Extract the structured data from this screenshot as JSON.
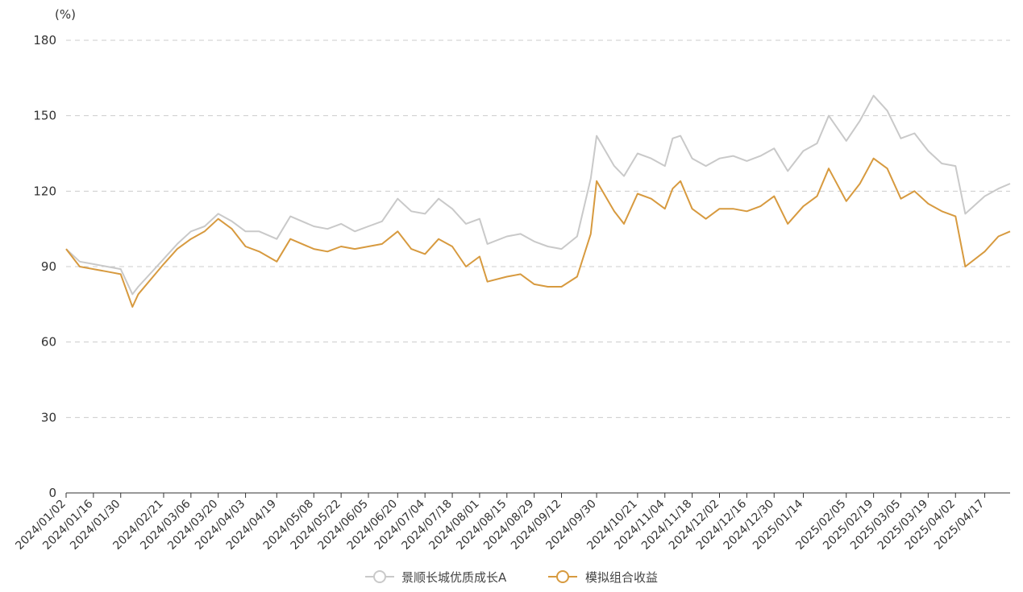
{
  "chart_data": {
    "type": "line",
    "y_unit": "(%)",
    "ylim": [
      0,
      180
    ],
    "y_ticks": [
      "0",
      "30",
      "60",
      "90",
      "120",
      "150",
      "180"
    ],
    "grid": true,
    "legend_position": "bottom-center",
    "x_ticks": [
      "2024/01/02",
      "2024/01/16",
      "2024/01/30",
      "2024/02/21",
      "2024/03/06",
      "2024/03/20",
      "2024/04/03",
      "2024/04/19",
      "2024/05/08",
      "2024/05/22",
      "2024/06/05",
      "2024/06/20",
      "2024/07/04",
      "2024/07/18",
      "2024/08/01",
      "2024/08/15",
      "2024/08/29",
      "2024/09/12",
      "2024/09/30",
      "2024/10/21",
      "2024/11/04",
      "2024/11/18",
      "2024/12/02",
      "2024/12/16",
      "2024/12/30",
      "2025/01/14",
      "2025/02/05",
      "2025/02/19",
      "2025/03/05",
      "2025/03/19",
      "2025/04/02",
      "2025/04/17"
    ],
    "x_end": "2025/04/30",
    "series": [
      {
        "name": "景顺长城优质成长A",
        "color": "#c9c9c9",
        "points": [
          [
            "2024/01/02",
            97
          ],
          [
            "2024/01/09",
            92
          ],
          [
            "2024/01/16",
            91
          ],
          [
            "2024/01/23",
            90
          ],
          [
            "2024/01/30",
            89
          ],
          [
            "2024/02/05",
            79
          ],
          [
            "2024/02/08",
            82
          ],
          [
            "2024/02/21",
            93
          ],
          [
            "2024/02/28",
            99
          ],
          [
            "2024/03/06",
            104
          ],
          [
            "2024/03/13",
            106
          ],
          [
            "2024/03/20",
            111
          ],
          [
            "2024/03/27",
            108
          ],
          [
            "2024/04/03",
            104
          ],
          [
            "2024/04/10",
            104
          ],
          [
            "2024/04/19",
            101
          ],
          [
            "2024/04/26",
            110
          ],
          [
            "2024/05/08",
            106
          ],
          [
            "2024/05/15",
            105
          ],
          [
            "2024/05/22",
            107
          ],
          [
            "2024/05/29",
            104
          ],
          [
            "2024/06/05",
            106
          ],
          [
            "2024/06/12",
            108
          ],
          [
            "2024/06/20",
            117
          ],
          [
            "2024/06/27",
            112
          ],
          [
            "2024/07/04",
            111
          ],
          [
            "2024/07/11",
            117
          ],
          [
            "2024/07/18",
            113
          ],
          [
            "2024/07/25",
            107
          ],
          [
            "2024/08/01",
            109
          ],
          [
            "2024/08/05",
            99
          ],
          [
            "2024/08/15",
            102
          ],
          [
            "2024/08/22",
            103
          ],
          [
            "2024/08/29",
            100
          ],
          [
            "2024/09/05",
            98
          ],
          [
            "2024/09/12",
            97
          ],
          [
            "2024/09/20",
            102
          ],
          [
            "2024/09/27",
            125
          ],
          [
            "2024/09/30",
            142
          ],
          [
            "2024/10/09",
            130
          ],
          [
            "2024/10/14",
            126
          ],
          [
            "2024/10/21",
            135
          ],
          [
            "2024/10/28",
            133
          ],
          [
            "2024/11/04",
            130
          ],
          [
            "2024/11/08",
            141
          ],
          [
            "2024/11/12",
            142
          ],
          [
            "2024/11/18",
            133
          ],
          [
            "2024/11/25",
            130
          ],
          [
            "2024/12/02",
            133
          ],
          [
            "2024/12/09",
            134
          ],
          [
            "2024/12/16",
            132
          ],
          [
            "2024/12/23",
            134
          ],
          [
            "2024/12/30",
            137
          ],
          [
            "2025/01/06",
            128
          ],
          [
            "2025/01/14",
            136
          ],
          [
            "2025/01/21",
            139
          ],
          [
            "2025/01/27",
            150
          ],
          [
            "2025/02/05",
            140
          ],
          [
            "2025/02/12",
            148
          ],
          [
            "2025/02/19",
            158
          ],
          [
            "2025/02/26",
            152
          ],
          [
            "2025/03/05",
            141
          ],
          [
            "2025/03/12",
            143
          ],
          [
            "2025/03/19",
            136
          ],
          [
            "2025/03/26",
            131
          ],
          [
            "2025/04/02",
            130
          ],
          [
            "2025/04/07",
            111
          ],
          [
            "2025/04/17",
            118
          ],
          [
            "2025/04/24",
            121
          ],
          [
            "2025/04/30",
            123
          ]
        ]
      },
      {
        "name": "模拟组合收益",
        "color": "#d79a3f",
        "points": [
          [
            "2024/01/02",
            97
          ],
          [
            "2024/01/09",
            90
          ],
          [
            "2024/01/16",
            89
          ],
          [
            "2024/01/23",
            88
          ],
          [
            "2024/01/30",
            87
          ],
          [
            "2024/02/05",
            74
          ],
          [
            "2024/02/08",
            79
          ],
          [
            "2024/02/21",
            91
          ],
          [
            "2024/02/28",
            97
          ],
          [
            "2024/03/06",
            101
          ],
          [
            "2024/03/13",
            104
          ],
          [
            "2024/03/20",
            109
          ],
          [
            "2024/03/27",
            105
          ],
          [
            "2024/04/03",
            98
          ],
          [
            "2024/04/10",
            96
          ],
          [
            "2024/04/19",
            92
          ],
          [
            "2024/04/26",
            101
          ],
          [
            "2024/05/08",
            97
          ],
          [
            "2024/05/15",
            96
          ],
          [
            "2024/05/22",
            98
          ],
          [
            "2024/05/29",
            97
          ],
          [
            "2024/06/05",
            98
          ],
          [
            "2024/06/12",
            99
          ],
          [
            "2024/06/20",
            104
          ],
          [
            "2024/06/27",
            97
          ],
          [
            "2024/07/04",
            95
          ],
          [
            "2024/07/11",
            101
          ],
          [
            "2024/07/18",
            98
          ],
          [
            "2024/07/25",
            90
          ],
          [
            "2024/08/01",
            94
          ],
          [
            "2024/08/05",
            84
          ],
          [
            "2024/08/15",
            86
          ],
          [
            "2024/08/22",
            87
          ],
          [
            "2024/08/29",
            83
          ],
          [
            "2024/09/05",
            82
          ],
          [
            "2024/09/12",
            82
          ],
          [
            "2024/09/20",
            86
          ],
          [
            "2024/09/27",
            103
          ],
          [
            "2024/09/30",
            124
          ],
          [
            "2024/10/09",
            112
          ],
          [
            "2024/10/14",
            107
          ],
          [
            "2024/10/21",
            119
          ],
          [
            "2024/10/28",
            117
          ],
          [
            "2024/11/04",
            113
          ],
          [
            "2024/11/08",
            121
          ],
          [
            "2024/11/12",
            124
          ],
          [
            "2024/11/18",
            113
          ],
          [
            "2024/11/25",
            109
          ],
          [
            "2024/12/02",
            113
          ],
          [
            "2024/12/09",
            113
          ],
          [
            "2024/12/16",
            112
          ],
          [
            "2024/12/23",
            114
          ],
          [
            "2024/12/30",
            118
          ],
          [
            "2025/01/06",
            107
          ],
          [
            "2025/01/14",
            114
          ],
          [
            "2025/01/21",
            118
          ],
          [
            "2025/01/27",
            129
          ],
          [
            "2025/02/05",
            116
          ],
          [
            "2025/02/12",
            123
          ],
          [
            "2025/02/19",
            133
          ],
          [
            "2025/02/26",
            129
          ],
          [
            "2025/03/05",
            117
          ],
          [
            "2025/03/12",
            120
          ],
          [
            "2025/03/19",
            115
          ],
          [
            "2025/03/26",
            112
          ],
          [
            "2025/04/02",
            110
          ],
          [
            "2025/04/07",
            90
          ],
          [
            "2025/04/17",
            96
          ],
          [
            "2025/04/24",
            102
          ],
          [
            "2025/04/30",
            104
          ]
        ]
      }
    ]
  }
}
